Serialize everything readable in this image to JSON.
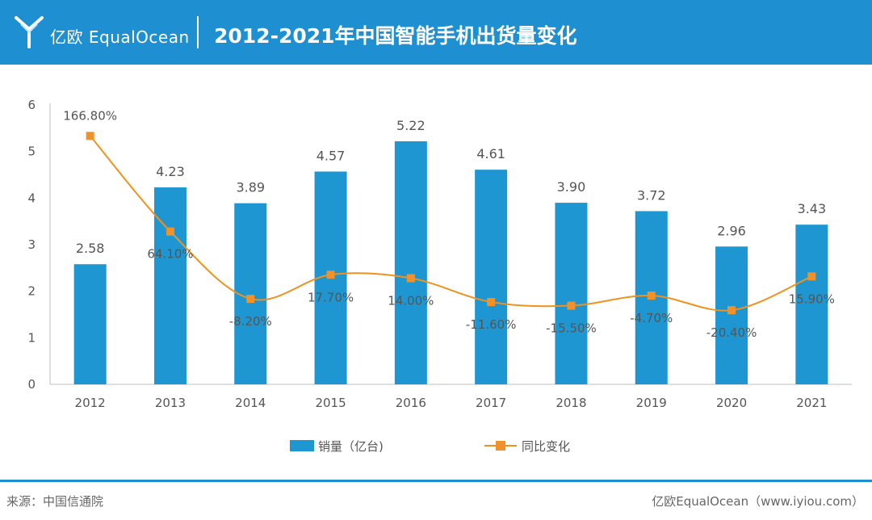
{
  "header": {
    "brand_text": "亿欧 EqualOcean",
    "title": "2012-2021年中国智能手机出货量变化"
  },
  "footer": {
    "source": "来源：中国信通院",
    "credit": "亿欧EqualOcean（www.iyiou.com）"
  },
  "colors": {
    "header_bg": "#1e8fd0",
    "bar": "#1e96d2",
    "line": "#f0921e",
    "marker": "#f0922b"
  },
  "chart_data": {
    "type": "bar",
    "categories": [
      "2012",
      "2013",
      "2014",
      "2015",
      "2016",
      "2017",
      "2018",
      "2019",
      "2020",
      "2021"
    ],
    "ylim": [
      0,
      6
    ],
    "yticks": [
      "0",
      "1",
      "2",
      "3",
      "4",
      "5",
      "6"
    ],
    "grid": false,
    "legend_position": "bottom",
    "series": [
      {
        "name": "销量（亿台)",
        "type": "bar",
        "values": [
          2.58,
          4.23,
          3.89,
          4.57,
          5.22,
          4.61,
          3.9,
          3.72,
          2.96,
          3.43
        ],
        "labels": [
          "2.58",
          "4.23",
          "3.89",
          "4.57",
          "5.22",
          "4.61",
          "3.90",
          "3.72",
          "2.96",
          "3.43"
        ]
      },
      {
        "name": "同比变化",
        "type": "line",
        "values": [
          166.8,
          64.1,
          -8.2,
          17.7,
          14.0,
          -11.6,
          -15.5,
          -4.7,
          -20.4,
          15.9
        ],
        "labels": [
          "166.80%",
          "64.10%",
          "-8.20%",
          "17.70%",
          "14.00%",
          "-11.60%",
          "-15.50%",
          "-4.70%",
          "-20.40%",
          "15.90%"
        ]
      }
    ]
  }
}
